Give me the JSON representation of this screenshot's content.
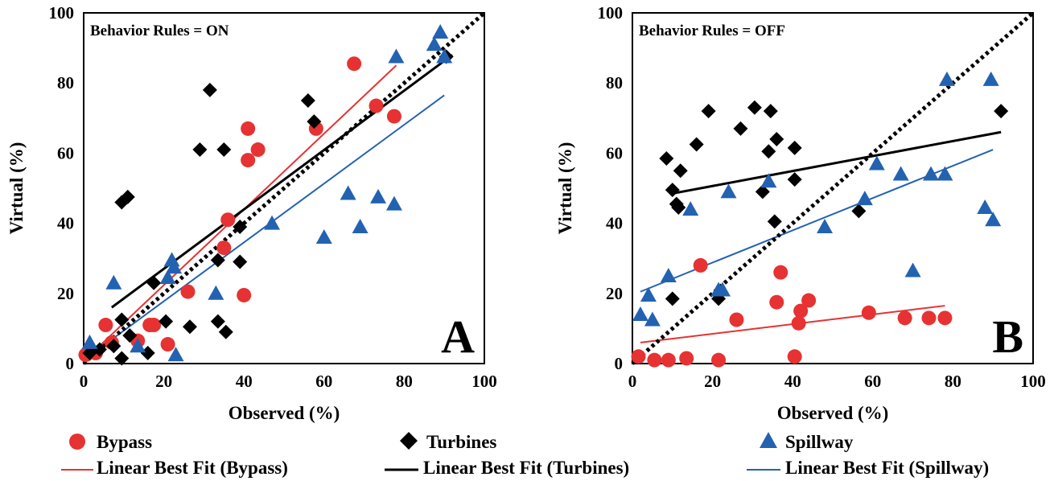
{
  "colors": {
    "bypass": "#e63232",
    "turbines": "#000000",
    "spillway": "#2362b1"
  },
  "legend": {
    "bypass": "Bypass",
    "turbines": "Turbines",
    "spillway": "Spillway",
    "fit_bypass": "Linear Best Fit (Bypass)",
    "fit_turbines": "Linear Best Fit (Turbines)",
    "fit_spillway": "Linear Best Fit (Spillway)"
  },
  "chart_data": [
    {
      "type": "scatter",
      "panel": "A",
      "annotation": "Behavior Rules = ON",
      "xlabel": "Observed (%)",
      "ylabel": "Virtual (%)",
      "xlim": [
        0,
        100
      ],
      "ylim": [
        0,
        100
      ],
      "xticks": [
        "0",
        "20",
        "40",
        "60",
        "80",
        "100"
      ],
      "yticks": [
        "0",
        "20",
        "40",
        "60",
        "80",
        "100"
      ],
      "identity_line": {
        "style": "dotted",
        "from": [
          0,
          0
        ],
        "to": [
          100,
          100
        ]
      },
      "series": [
        {
          "name": "Bypass",
          "marker": "circle",
          "color": "#e63232",
          "points": [
            [
              0.5,
              2.5
            ],
            [
              3,
              3
            ],
            [
              5.5,
              11
            ],
            [
              7,
              6
            ],
            [
              13.5,
              6.5
            ],
            [
              16.5,
              11
            ],
            [
              17.5,
              11
            ],
            [
              21,
              5.5
            ],
            [
              26,
              20.5
            ],
            [
              35,
              33
            ],
            [
              36,
              41
            ],
            [
              40,
              19.5
            ],
            [
              41,
              58
            ],
            [
              41,
              67
            ],
            [
              43.5,
              61
            ],
            [
              58,
              67
            ],
            [
              67.5,
              85.5
            ],
            [
              73,
              73.5
            ],
            [
              77.5,
              70.5
            ]
          ]
        },
        {
          "name": "Turbines",
          "marker": "diamond",
          "color": "#000000",
          "points": [
            [
              1.5,
              3
            ],
            [
              4,
              4
            ],
            [
              7.5,
              5
            ],
            [
              9.5,
              12.5
            ],
            [
              9.5,
              1.5
            ],
            [
              9.5,
              46
            ],
            [
              11,
              47.5
            ],
            [
              11.5,
              8
            ],
            [
              16,
              3
            ],
            [
              17.5,
              23
            ],
            [
              20.5,
              12
            ],
            [
              26.5,
              10.5
            ],
            [
              29,
              61
            ],
            [
              31.5,
              78
            ],
            [
              33.5,
              12
            ],
            [
              33.5,
              29.5
            ],
            [
              35,
              61
            ],
            [
              35.5,
              9
            ],
            [
              39,
              39
            ],
            [
              39,
              29
            ],
            [
              56,
              75
            ],
            [
              57.5,
              69
            ],
            [
              90.5,
              87.5
            ]
          ]
        },
        {
          "name": "Spillway",
          "marker": "triangle",
          "color": "#2362b1",
          "points": [
            [
              1.5,
              6
            ],
            [
              7.5,
              23
            ],
            [
              13.5,
              5
            ],
            [
              21,
              24.5
            ],
            [
              22,
              29.5
            ],
            [
              22.5,
              27.5
            ],
            [
              23,
              2.5
            ],
            [
              33,
              20
            ],
            [
              47,
              40
            ],
            [
              60,
              36
            ],
            [
              66,
              48.5
            ],
            [
              69,
              39
            ],
            [
              73.5,
              47.5
            ],
            [
              77.5,
              45.5
            ],
            [
              78,
              87.5
            ],
            [
              87.5,
              91
            ],
            [
              89,
              94.5
            ],
            [
              90,
              87.5
            ]
          ]
        }
      ],
      "fits": [
        {
          "name": "Linear Best Fit (Bypass)",
          "color": "#e63232",
          "from": [
            3,
            4
          ],
          "to": [
            78,
            85
          ]
        },
        {
          "name": "Linear Best Fit (Turbines)",
          "color": "#000000",
          "from": [
            7,
            16
          ],
          "to": [
            92,
            88
          ]
        },
        {
          "name": "Linear Best Fit (Spillway)",
          "color": "#2362b1",
          "from": [
            3,
            3.5
          ],
          "to": [
            90,
            76.5
          ]
        }
      ]
    },
    {
      "type": "scatter",
      "panel": "B",
      "annotation": "Behavior Rules = OFF",
      "xlabel": "Observed (%)",
      "ylabel": "Virtual (%)",
      "xlim": [
        0,
        100
      ],
      "ylim": [
        0,
        100
      ],
      "xticks": [
        "0",
        "20",
        "40",
        "60",
        "80",
        "100"
      ],
      "yticks": [
        "0",
        "20",
        "40",
        "60",
        "80",
        "100"
      ],
      "identity_line": {
        "style": "dotted",
        "from": [
          0,
          0
        ],
        "to": [
          100,
          100
        ]
      },
      "series": [
        {
          "name": "Bypass",
          "marker": "circle",
          "color": "#e63232",
          "points": [
            [
              1.5,
              2
            ],
            [
              5.5,
              1
            ],
            [
              9,
              1
            ],
            [
              13.5,
              1.5
            ],
            [
              17,
              28
            ],
            [
              21.5,
              1
            ],
            [
              26,
              12.5
            ],
            [
              36,
              17.5
            ],
            [
              37,
              26
            ],
            [
              40.5,
              2
            ],
            [
              41.5,
              11.5
            ],
            [
              42,
              15
            ],
            [
              44,
              18
            ],
            [
              59,
              14.5
            ],
            [
              68,
              13
            ],
            [
              74,
              13
            ],
            [
              78,
              13
            ]
          ]
        },
        {
          "name": "Turbines",
          "marker": "diamond",
          "color": "#000000",
          "points": [
            [
              8.5,
              58.5
            ],
            [
              10,
              49.5
            ],
            [
              10,
              18.5
            ],
            [
              11,
              45.5
            ],
            [
              11.5,
              44.5
            ],
            [
              12,
              55
            ],
            [
              16,
              62.5
            ],
            [
              19,
              72
            ],
            [
              21.5,
              18.5
            ],
            [
              27,
              67
            ],
            [
              30.5,
              73
            ],
            [
              32.5,
              49
            ],
            [
              34,
              60.5
            ],
            [
              34.5,
              72
            ],
            [
              35.5,
              40.5
            ],
            [
              36,
              64
            ],
            [
              40.5,
              61.5
            ],
            [
              40.5,
              52.5
            ],
            [
              56.5,
              43.5
            ],
            [
              92,
              72
            ]
          ]
        },
        {
          "name": "Spillway",
          "marker": "triangle",
          "color": "#2362b1",
          "points": [
            [
              2,
              14
            ],
            [
              4,
              19.5
            ],
            [
              5,
              12.5
            ],
            [
              9,
              25
            ],
            [
              14.5,
              44
            ],
            [
              21.5,
              21
            ],
            [
              22.5,
              21
            ],
            [
              24,
              49
            ],
            [
              34,
              52
            ],
            [
              48,
              39
            ],
            [
              58,
              47
            ],
            [
              61,
              57
            ],
            [
              67,
              54
            ],
            [
              70,
              26.5
            ],
            [
              74.5,
              54
            ],
            [
              78,
              54
            ],
            [
              78.5,
              81
            ],
            [
              88,
              44.5
            ],
            [
              89.5,
              81
            ],
            [
              90,
              41
            ]
          ]
        }
      ],
      "fits": [
        {
          "name": "Linear Best Fit (Bypass)",
          "color": "#e63232",
          "from": [
            2,
            6
          ],
          "to": [
            78,
            16.5
          ]
        },
        {
          "name": "Linear Best Fit (Turbines)",
          "color": "#000000",
          "from": [
            10,
            48.5
          ],
          "to": [
            92,
            66
          ]
        },
        {
          "name": "Linear Best Fit (Spillway)",
          "color": "#2362b1",
          "from": [
            2,
            20.5
          ],
          "to": [
            90,
            61
          ]
        }
      ]
    }
  ]
}
